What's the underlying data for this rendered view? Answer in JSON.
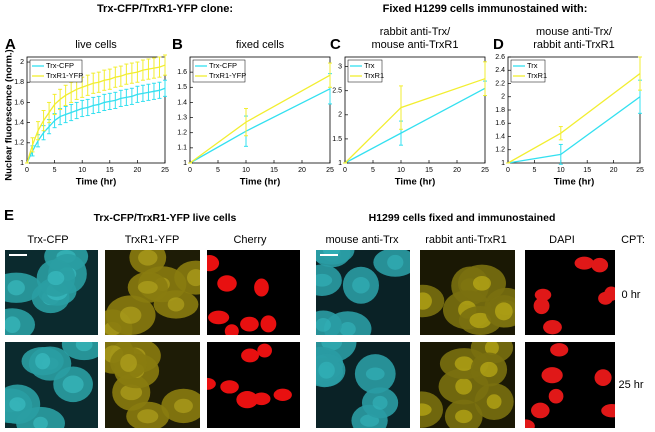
{
  "header_left": "Trx-CFP/TrxR1-YFP clone:",
  "header_right": "Fixed H1299 cells immunostained with:",
  "chart_data": [
    {
      "panel": "A",
      "type": "line",
      "title": [
        "live cells"
      ],
      "xlabel": "Time (hr)",
      "ylabel": "Nuclear fluorescence (norm.)",
      "x": [
        0,
        1,
        2,
        3,
        4,
        5,
        6,
        7,
        8,
        9,
        10,
        11,
        12,
        13,
        14,
        15,
        16,
        17,
        18,
        19,
        20,
        21,
        22,
        23,
        24,
        25
      ],
      "series": [
        {
          "name": "Trx-CFP",
          "color": "#33e0f0",
          "values": [
            1.0,
            1.12,
            1.22,
            1.3,
            1.36,
            1.42,
            1.46,
            1.48,
            1.5,
            1.52,
            1.54,
            1.55,
            1.57,
            1.58,
            1.6,
            1.61,
            1.62,
            1.64,
            1.65,
            1.66,
            1.68,
            1.69,
            1.7,
            1.71,
            1.72,
            1.74
          ],
          "errors": [
            0,
            0.05,
            0.06,
            0.07,
            0.07,
            0.07,
            0.08,
            0.08,
            0.08,
            0.08,
            0.08,
            0.08,
            0.08,
            0.08,
            0.08,
            0.08,
            0.08,
            0.08,
            0.08,
            0.08,
            0.08,
            0.08,
            0.08,
            0.08,
            0.08,
            0.08
          ]
        },
        {
          "name": "TrxR1-YFP",
          "color": "#f2ee30",
          "values": [
            1.0,
            1.18,
            1.32,
            1.42,
            1.5,
            1.58,
            1.63,
            1.67,
            1.7,
            1.73,
            1.75,
            1.77,
            1.79,
            1.8,
            1.82,
            1.83,
            1.85,
            1.86,
            1.88,
            1.89,
            1.9,
            1.92,
            1.93,
            1.94,
            1.95,
            1.97
          ],
          "errors": [
            0,
            0.07,
            0.09,
            0.1,
            0.1,
            0.1,
            0.1,
            0.1,
            0.1,
            0.1,
            0.1,
            0.1,
            0.1,
            0.1,
            0.1,
            0.1,
            0.1,
            0.1,
            0.1,
            0.1,
            0.1,
            0.1,
            0.1,
            0.1,
            0.1,
            0.1
          ]
        }
      ],
      "xlim": [
        0,
        25
      ],
      "ylim": [
        1,
        2.05
      ],
      "xticks": [
        0,
        5,
        10,
        15,
        20,
        25
      ],
      "yticks": [
        1,
        1.2,
        1.4,
        1.6,
        1.8,
        2
      ],
      "legend": "upper left"
    },
    {
      "panel": "B",
      "type": "line",
      "title": [
        "fixed cells"
      ],
      "xlabel": "Time (hr)",
      "x": [
        0,
        10,
        25
      ],
      "series": [
        {
          "name": "Trx-CFP",
          "color": "#33e0f0",
          "values": [
            1,
            1.21,
            1.49
          ],
          "errors": [
            0,
            0.1,
            0.1
          ]
        },
        {
          "name": "TrxR1-YFP",
          "color": "#f2ee30",
          "values": [
            1,
            1.27,
            1.58
          ],
          "errors": [
            0,
            0.09,
            0.08
          ]
        }
      ],
      "xlim": [
        0,
        25
      ],
      "ylim": [
        1,
        1.7
      ],
      "xticks": [
        0,
        5,
        10,
        15,
        20,
        25
      ],
      "yticks": [
        1,
        1.1,
        1.2,
        1.3,
        1.4,
        1.5,
        1.6
      ],
      "legend": "upper left"
    },
    {
      "panel": "C",
      "type": "line",
      "title": [
        "rabbit anti-Trx/",
        "mouse anti-TrxR1"
      ],
      "xlabel": "Time (hr)",
      "x": [
        0,
        10,
        25
      ],
      "series": [
        {
          "name": "Trx",
          "color": "#33e0f0",
          "values": [
            1,
            1.62,
            2.55
          ],
          "errors": [
            0,
            0.25,
            0.15
          ]
        },
        {
          "name": "TrxR1",
          "color": "#f2ee30",
          "values": [
            1,
            2.15,
            2.75
          ],
          "errors": [
            0,
            0.45,
            0.35
          ]
        }
      ],
      "xlim": [
        0,
        25
      ],
      "ylim": [
        1,
        3.2
      ],
      "xticks": [
        0,
        5,
        10,
        15,
        20,
        25
      ],
      "yticks": [
        1,
        1.5,
        2,
        2.5,
        3
      ],
      "legend": "upper left"
    },
    {
      "panel": "D",
      "type": "line",
      "title": [
        "mouse anti-Trx/",
        "rabbit anti-TrxR1"
      ],
      "xlabel": "Time (hr)",
      "x": [
        0,
        10,
        25
      ],
      "series": [
        {
          "name": "Trx",
          "color": "#33e0f0",
          "values": [
            1,
            1.13,
            2.0
          ],
          "errors": [
            0,
            0.15,
            0.25
          ]
        },
        {
          "name": "TrxR1",
          "color": "#f2ee30",
          "values": [
            1,
            1.45,
            2.35
          ],
          "errors": [
            0,
            0.1,
            0.25
          ]
        }
      ],
      "xlim": [
        0,
        25
      ],
      "ylim": [
        1,
        2.6
      ],
      "xticks": [
        0,
        5,
        10,
        15,
        20,
        25
      ],
      "yticks": [
        1,
        1.2,
        1.4,
        1.6,
        1.8,
        2,
        2.2,
        2.4,
        2.6
      ],
      "legend": "upper left"
    }
  ],
  "figure_e": {
    "panel": "E",
    "titles": [
      "Trx-CFP/TrxR1-YFP live cells",
      "H1299 cells fixed and immunostained"
    ],
    "columns": [
      "Trx-CFP",
      "TrxR1-YFP",
      "Cherry",
      "mouse anti-Trx",
      "rabbit anti-TrxR1",
      "DAPI"
    ],
    "cpt_label": "CPT:",
    "rows": [
      "0 hr",
      "25 hr"
    ]
  }
}
